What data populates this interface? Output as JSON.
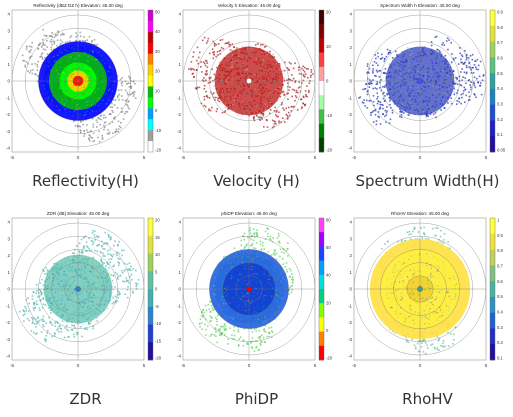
{
  "chart_data": [
    {
      "type": "heatmap",
      "title": "Reflectivity (dBZ DZ h)  Elevation: 45.00 deg",
      "caption": "Reflectivity(H)",
      "xticks": [
        "-5",
        "0",
        "5"
      ],
      "yticks": [
        "4",
        "3",
        "2",
        "1",
        "0",
        "-1",
        "-2",
        "-3",
        "-4"
      ],
      "colorbar_ticks": [
        "50",
        "40",
        "30",
        "20",
        "10",
        "0",
        "-10",
        "-20"
      ],
      "colorbar_colors": [
        "#d000d0",
        "#ff00ff",
        "#c00000",
        "#ff0000",
        "#ff8000",
        "#ffd000",
        "#ffff00",
        "#00c000",
        "#00ff00",
        "#00a0ff",
        "#00ffff",
        "#a0a0a0",
        "#ffffff"
      ],
      "rings": [
        {
          "r": 0.3,
          "color": "#0000ff"
        },
        {
          "r": 0.22,
          "color": "#00c000"
        },
        {
          "r": 0.14,
          "color": "#00ff00"
        },
        {
          "r": 0.08,
          "color": "#ffd000"
        },
        {
          "r": 0.04,
          "color": "#ff0000"
        }
      ],
      "halo_color": "#00c0e0",
      "echo_color": "#808890",
      "center_color": "#ff2020"
    },
    {
      "type": "heatmap",
      "title": "Velocity h  Elevation: 45.00 deg",
      "caption": "Velocity (H)",
      "xticks": [
        "-5",
        "0",
        "5"
      ],
      "yticks": [
        "4",
        "3",
        "2",
        "1",
        "0",
        "-1",
        "-2",
        "-3",
        "-4"
      ],
      "colorbar_ticks": [
        "20",
        "10",
        "0",
        "-10",
        "-20"
      ],
      "colorbar_colors": [
        "#400000",
        "#800000",
        "#c00000",
        "#ff4040",
        "#ffa0a0",
        "#ffffff",
        "#a0ffa0",
        "#40c040",
        "#008000",
        "#004000"
      ],
      "rings": [],
      "halo_color": "#c01010",
      "echo_color": "#a02020",
      "center_color": "#ffffff"
    },
    {
      "type": "heatmap",
      "title": "Spectrum Width h  Elevation: 45.00 deg",
      "caption": "Spectrum Width(H)",
      "xticks": [
        "-5",
        "0",
        "5"
      ],
      "yticks": [
        "4",
        "3",
        "2",
        "1",
        "0",
        "-1",
        "-2",
        "-3",
        "-4"
      ],
      "colorbar_ticks": [
        "0.9",
        "0.8",
        "0.7",
        "0.6",
        "0.5",
        "0.4",
        "0.3",
        "0.2",
        "0.1",
        "0.05"
      ],
      "colorbar_colors": [
        "#ffff40",
        "#e0e040",
        "#a0d060",
        "#60c080",
        "#30a0a0",
        "#2080c0",
        "#2050d0",
        "#2020c0",
        "#2010a0"
      ],
      "rings": [],
      "halo_color": "#3040c0",
      "echo_color": "#2030b0",
      "center_color": "#4050ff"
    },
    {
      "type": "heatmap",
      "title": "ZDR (dB)  Elevation: 45.00 deg",
      "caption": "ZDR",
      "xticks": [
        "-5",
        "0",
        "5"
      ],
      "yticks": [
        "4",
        "3",
        "2",
        "1",
        "0",
        "-1",
        "-2",
        "-3",
        "-4"
      ],
      "colorbar_ticks": [
        "20",
        "15",
        "10",
        "5",
        "0",
        "-5",
        "-10",
        "-15",
        "-20"
      ],
      "colorbar_colors": [
        "#ffff40",
        "#e0e040",
        "#a0d060",
        "#60c0a0",
        "#40b0b0",
        "#3080d0",
        "#2040d0",
        "#2010a0"
      ],
      "rings": [],
      "halo_color": "#58c0b0",
      "echo_color": "#50b8b0",
      "center_color": "#3080d0"
    },
    {
      "type": "heatmap",
      "title": "phiDP  Elevation: 45.00 deg",
      "caption": "PhiDP",
      "xticks": [
        "-5",
        "0",
        "5"
      ],
      "yticks": [
        "4",
        "3",
        "2",
        "1",
        "0",
        "-1",
        "-2",
        "-3",
        "-4"
      ],
      "colorbar_ticks": [
        "80",
        "60",
        "40",
        "20",
        "0",
        "-20"
      ],
      "colorbar_colors": [
        "#ff40ff",
        "#a000ff",
        "#2040ff",
        "#00a0ff",
        "#00e0e0",
        "#00d080",
        "#80ff00",
        "#ffff00",
        "#ff8000",
        "#ff0000"
      ],
      "rings": [
        {
          "r": 0.3,
          "color": "#2060e0"
        },
        {
          "r": 0.2,
          "color": "#1040d0"
        }
      ],
      "halo_color": "#40c0c0",
      "echo_color": "#60d060",
      "center_color": "#ff0000"
    },
    {
      "type": "heatmap",
      "title": "RhoHV  Elevation: 45.00 deg",
      "caption": "RhoHV",
      "xticks": [
        "-5",
        "0",
        "5"
      ],
      "yticks": [
        "4",
        "3",
        "2",
        "1",
        "0",
        "-1",
        "-2",
        "-3",
        "-4"
      ],
      "colorbar_ticks": [
        "1",
        "0.9",
        "0.8",
        "0.7",
        "0.6",
        "0.5",
        "0.4",
        "0.3",
        "0.2",
        "0.1"
      ],
      "colorbar_colors": [
        "#ffff40",
        "#f0e040",
        "#c0d060",
        "#80c080",
        "#50b0a0",
        "#3090c0",
        "#2060d0",
        "#2030c0",
        "#2010a0"
      ],
      "rings": [
        {
          "r": 0.38,
          "color": "#ffe040"
        },
        {
          "r": 0.3,
          "color": "#fff040"
        },
        {
          "r": 0.1,
          "color": "#f0d030"
        }
      ],
      "halo_color": "#a0d070",
      "echo_color": "#60c0a0",
      "center_color": "#40a090"
    }
  ]
}
